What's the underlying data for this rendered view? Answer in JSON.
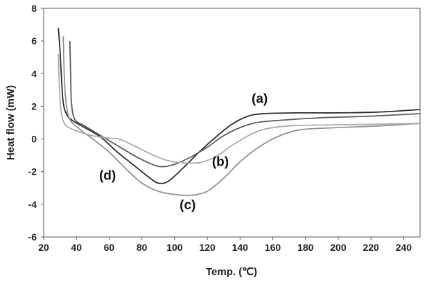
{
  "chart_data": {
    "type": "line",
    "title": "",
    "xlabel": "Temp. (℃)",
    "ylabel": "Heat flow (mW)",
    "xlim": [
      20,
      250
    ],
    "ylim": [
      -6,
      8
    ],
    "xticks": [
      20,
      40,
      60,
      80,
      100,
      120,
      140,
      160,
      180,
      200,
      220,
      240
    ],
    "yticks": [
      -6,
      -4,
      -2,
      0,
      2,
      4,
      6,
      8
    ],
    "grid": false,
    "legend": "none",
    "series": [
      {
        "name": "(a)",
        "color": "#2a2a2a",
        "points": [
          [
            29,
            6.8
          ],
          [
            30,
            5.4
          ],
          [
            31,
            3.5
          ],
          [
            32,
            2.2
          ],
          [
            34,
            1.5
          ],
          [
            38,
            1.1
          ],
          [
            45,
            0.7
          ],
          [
            55,
            0.1
          ],
          [
            65,
            -0.8
          ],
          [
            75,
            -1.6
          ],
          [
            85,
            -2.4
          ],
          [
            90,
            -2.7
          ],
          [
            96,
            -2.6
          ],
          [
            105,
            -1.8
          ],
          [
            115,
            -0.8
          ],
          [
            125,
            0.1
          ],
          [
            135,
            0.9
          ],
          [
            145,
            1.4
          ],
          [
            155,
            1.55
          ],
          [
            175,
            1.6
          ],
          [
            200,
            1.6
          ],
          [
            225,
            1.65
          ],
          [
            250,
            1.8
          ]
        ]
      },
      {
        "name": "(b)",
        "color": "#5a5a5a",
        "points": [
          [
            36,
            6.0
          ],
          [
            36.5,
            3.8
          ],
          [
            37,
            2.2
          ],
          [
            39,
            1.2
          ],
          [
            45,
            0.8
          ],
          [
            55,
            0.2
          ],
          [
            65,
            -0.4
          ],
          [
            75,
            -1.0
          ],
          [
            85,
            -1.5
          ],
          [
            92,
            -1.7
          ],
          [
            100,
            -1.55
          ],
          [
            110,
            -1.1
          ],
          [
            120,
            -0.5
          ],
          [
            130,
            0.2
          ],
          [
            140,
            0.7
          ],
          [
            150,
            1.0
          ],
          [
            165,
            1.15
          ],
          [
            190,
            1.3
          ],
          [
            220,
            1.4
          ],
          [
            250,
            1.55
          ]
        ]
      },
      {
        "name": "(c)",
        "color": "#909090",
        "points": [
          [
            32,
            6.3
          ],
          [
            32.5,
            4.2
          ],
          [
            33.5,
            2.4
          ],
          [
            36,
            1.2
          ],
          [
            42,
            0.6
          ],
          [
            50,
            0.0
          ],
          [
            60,
            -0.8
          ],
          [
            70,
            -1.8
          ],
          [
            80,
            -2.7
          ],
          [
            90,
            -3.2
          ],
          [
            100,
            -3.4
          ],
          [
            110,
            -3.45
          ],
          [
            120,
            -3.2
          ],
          [
            130,
            -2.4
          ],
          [
            140,
            -1.4
          ],
          [
            150,
            -0.6
          ],
          [
            160,
            0.0
          ],
          [
            170,
            0.4
          ],
          [
            180,
            0.6
          ],
          [
            200,
            0.7
          ],
          [
            225,
            0.8
          ],
          [
            250,
            0.95
          ]
        ]
      },
      {
        "name": "(d)",
        "color": "#aaaaaa",
        "points": [
          [
            29,
            5.2
          ],
          [
            29.5,
            3.5
          ],
          [
            30.5,
            1.8
          ],
          [
            33,
            0.9
          ],
          [
            40,
            0.5
          ],
          [
            50,
            0.2
          ],
          [
            60,
            0.05
          ],
          [
            66,
            0.0
          ],
          [
            75,
            -0.4
          ],
          [
            85,
            -0.9
          ],
          [
            95,
            -1.3
          ],
          [
            105,
            -1.45
          ],
          [
            115,
            -1.45
          ],
          [
            125,
            -1.1
          ],
          [
            135,
            -0.4
          ],
          [
            145,
            0.2
          ],
          [
            155,
            0.6
          ],
          [
            170,
            0.8
          ],
          [
            190,
            0.85
          ],
          [
            220,
            0.9
          ],
          [
            250,
            0.95
          ]
        ]
      }
    ],
    "annotations": [
      {
        "text": "(a)",
        "x": 152,
        "y": 2.5
      },
      {
        "text": "(b)",
        "x": 128,
        "y": -1.35
      },
      {
        "text": "(c)",
        "x": 108,
        "y": -4.0
      },
      {
        "text": "(d)",
        "x": 59,
        "y": -2.2
      }
    ]
  }
}
